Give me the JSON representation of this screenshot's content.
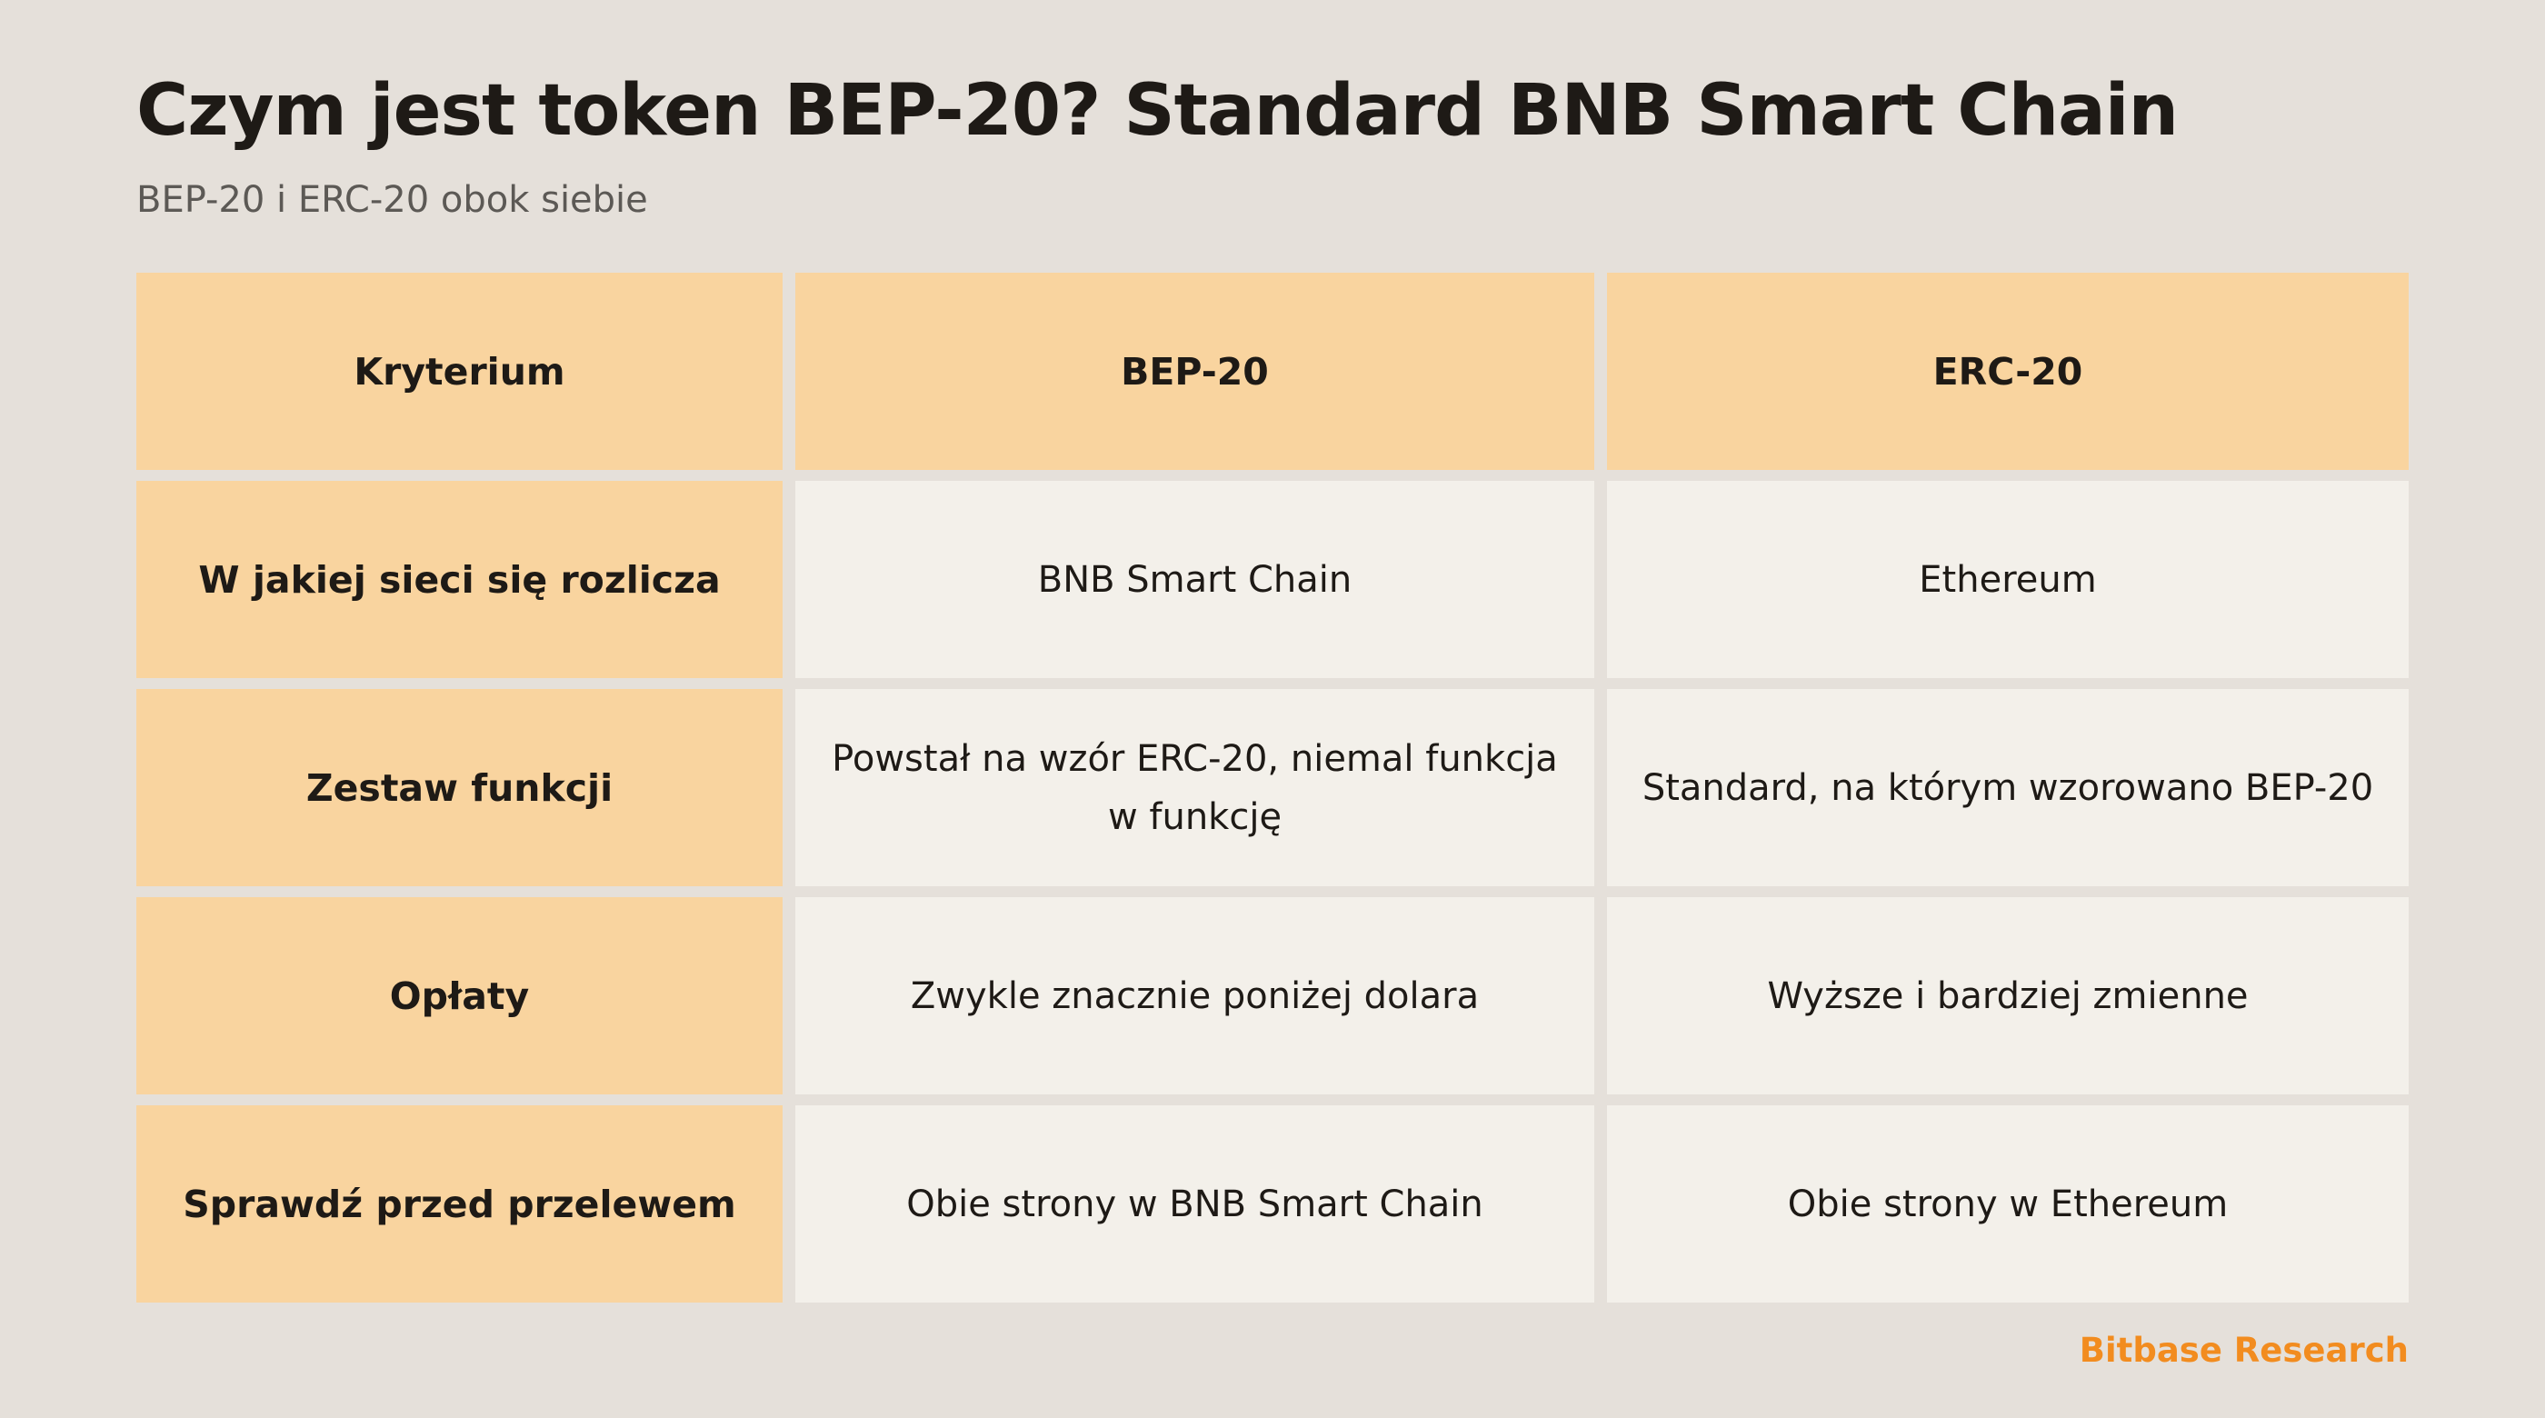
{
  "header": {
    "title": "Czym jest token BEP-20? Standard BNB Smart Chain",
    "subtitle": "BEP-20 i ERC-20 obok siebie"
  },
  "table": {
    "columns": [
      "Kryterium",
      "BEP-20",
      "ERC-20"
    ],
    "rows": [
      {
        "criterion": "W jakiej sieci się rozlicza",
        "bep20": "BNB Smart Chain",
        "erc20": "Ethereum"
      },
      {
        "criterion": "Zestaw funkcji",
        "bep20": "Powstał na wzór ERC-20, niemal funkcja w funkcję",
        "erc20": "Standard, na którym wzorowano BEP-20"
      },
      {
        "criterion": "Opłaty",
        "bep20": "Zwykle znacznie poniżej dolara",
        "erc20": "Wyższe i bardziej zmienne"
      },
      {
        "criterion": "Sprawdź przed przelewem",
        "bep20": "Obie strony w BNB Smart Chain",
        "erc20": "Obie strony w Ethereum"
      }
    ]
  },
  "footer": {
    "brand": "Bitbase Research"
  },
  "colors": {
    "background": "#e5e0da",
    "header_cell": "#f9d49f",
    "body_cell": "#f3f0ea",
    "brand": "#f28c1f"
  }
}
